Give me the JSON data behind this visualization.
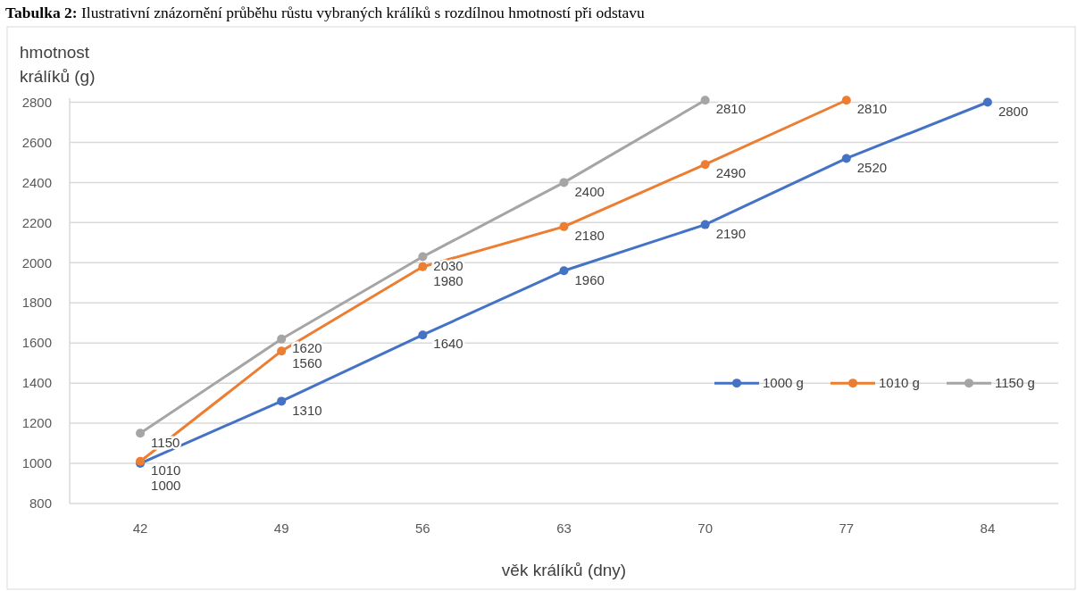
{
  "chart_data": {
    "type": "line",
    "title": "Tabulka 2: Ilustrativní znázornění průběhu růstu vybraných králíků s rozdílnou hmotností při odstavu",
    "ylabel": "hmotnost králíků (g)",
    "xlabel": "věk králíků (dny)",
    "categories": [
      "42",
      "49",
      "56",
      "63",
      "70",
      "77",
      "84"
    ],
    "series": [
      {
        "name": "1000 g",
        "color": "#4472c4",
        "values": [
          1000,
          1310,
          1640,
          1960,
          2190,
          2520,
          2800
        ]
      },
      {
        "name": "1010 g",
        "color": "#ed7d31",
        "values": [
          1010,
          1560,
          1980,
          2180,
          2490,
          2810,
          null
        ]
      },
      {
        "name": "1150 g",
        "color": "#a5a5a5",
        "values": [
          1150,
          1620,
          2030,
          2400,
          2810,
          null,
          null
        ]
      }
    ],
    "ylim": [
      800,
      2820
    ],
    "yticks": [
      800,
      1000,
      1200,
      1400,
      1600,
      1800,
      2000,
      2200,
      2400,
      2600,
      2800
    ],
    "grid": "y",
    "legend": "right",
    "marker": "circle",
    "data_labels": true
  }
}
